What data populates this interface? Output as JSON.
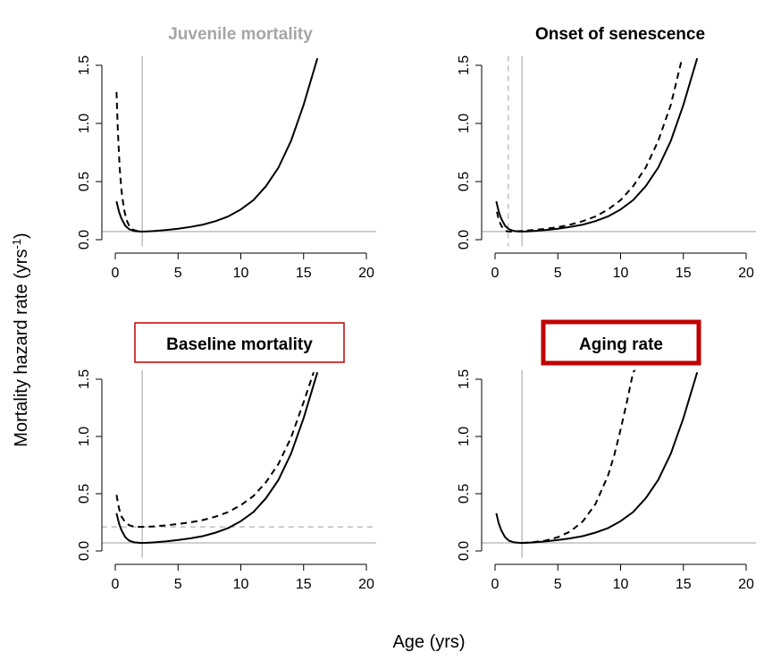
{
  "figure": {
    "ylabel_main": "Mortality hazard rate (yrs",
    "ylabel_sup": "-1",
    "ylabel_close": ")",
    "xlabel": "Age (yrs)"
  },
  "colors": {
    "curve": "#000000",
    "reference": "#bfbfbf",
    "title_muted": "#a6a6a6",
    "title_normal": "#000000",
    "highlight_box": "#c00000"
  },
  "chart_data": [
    {
      "type": "line",
      "title": "Juvenile mortality",
      "title_style": "muted",
      "xlim": [
        0,
        20
      ],
      "ylim": [
        0,
        1.5
      ],
      "x_ticks": [
        "0",
        "5",
        "10",
        "15",
        "20"
      ],
      "y_ticks": [
        "0.0",
        "0.5",
        "1.0",
        "1.5"
      ],
      "vline_solid": 2.15,
      "hline_solid": 0.07,
      "series": [
        {
          "style": "dashed",
          "x": [
            0.1,
            0.2,
            0.35,
            0.5,
            0.7,
            0.9,
            1.1,
            1.3,
            1.5,
            1.7,
            2.0,
            2.15
          ],
          "y": [
            1.27,
            0.95,
            0.62,
            0.42,
            0.26,
            0.17,
            0.12,
            0.095,
            0.082,
            0.076,
            0.072,
            0.07
          ]
        },
        {
          "style": "solid",
          "x": [
            0.1,
            0.3,
            0.5,
            0.8,
            1.1,
            1.5,
            2.0,
            2.5,
            3,
            4,
            5,
            6,
            7,
            8,
            9,
            10,
            11,
            12,
            13,
            14,
            15,
            16.1
          ],
          "y": [
            0.33,
            0.24,
            0.18,
            0.12,
            0.09,
            0.075,
            0.07,
            0.071,
            0.074,
            0.083,
            0.095,
            0.11,
            0.13,
            0.16,
            0.2,
            0.26,
            0.34,
            0.46,
            0.62,
            0.85,
            1.16,
            1.56
          ]
        }
      ]
    },
    {
      "type": "line",
      "title": "Onset of senescence",
      "title_style": "normal",
      "xlim": [
        0,
        20
      ],
      "ylim": [
        0,
        1.5
      ],
      "x_ticks": [
        "0",
        "5",
        "10",
        "15",
        "20"
      ],
      "y_ticks": [
        "0.0",
        "0.5",
        "1.0",
        "1.5"
      ],
      "vline_solid": 2.15,
      "vline_dashed": 1.05,
      "hline_solid": 0.07,
      "series": [
        {
          "style": "solid",
          "x": [
            0.1,
            0.3,
            0.5,
            0.8,
            1.1,
            1.5,
            2.0,
            2.5,
            3,
            4,
            5,
            6,
            7,
            8,
            9,
            10,
            11,
            12,
            13,
            14,
            15,
            16.1
          ],
          "y": [
            0.33,
            0.24,
            0.18,
            0.12,
            0.09,
            0.075,
            0.07,
            0.071,
            0.074,
            0.083,
            0.095,
            0.11,
            0.13,
            0.16,
            0.2,
            0.26,
            0.34,
            0.46,
            0.62,
            0.85,
            1.16,
            1.56
          ]
        },
        {
          "style": "dashed",
          "x": [
            0.15,
            0.3,
            0.5,
            0.7,
            0.9,
            1.05,
            1.5,
            2,
            3,
            4,
            5,
            6,
            7,
            8,
            9,
            10,
            11,
            12,
            13,
            14,
            14.9
          ],
          "y": [
            0.24,
            0.17,
            0.12,
            0.09,
            0.075,
            0.07,
            0.071,
            0.074,
            0.082,
            0.093,
            0.108,
            0.13,
            0.16,
            0.2,
            0.26,
            0.34,
            0.46,
            0.62,
            0.85,
            1.16,
            1.56
          ]
        }
      ]
    },
    {
      "type": "line",
      "title": "Baseline mortality",
      "title_style": "boxed",
      "xlim": [
        0,
        20
      ],
      "ylim": [
        0,
        1.5
      ],
      "x_ticks": [
        "0",
        "5",
        "10",
        "15",
        "20"
      ],
      "y_ticks": [
        "0.0",
        "0.5",
        "1.0",
        "1.5"
      ],
      "vline_solid": 2.15,
      "hline_solid": 0.07,
      "hline_dashed": 0.21,
      "series": [
        {
          "style": "dashed",
          "x": [
            0.1,
            0.3,
            0.5,
            0.8,
            1.1,
            1.5,
            2.0,
            2.5,
            3,
            4,
            5,
            6,
            7,
            8,
            9,
            10,
            11,
            12,
            13,
            14,
            15,
            15.8
          ],
          "y": [
            0.49,
            0.37,
            0.3,
            0.25,
            0.225,
            0.212,
            0.21,
            0.211,
            0.214,
            0.223,
            0.235,
            0.25,
            0.27,
            0.3,
            0.34,
            0.4,
            0.48,
            0.6,
            0.76,
            0.99,
            1.3,
            1.56
          ]
        },
        {
          "style": "solid",
          "x": [
            0.1,
            0.3,
            0.5,
            0.8,
            1.1,
            1.5,
            2.0,
            2.5,
            3,
            4,
            5,
            6,
            7,
            8,
            9,
            10,
            11,
            12,
            13,
            14,
            15,
            16.1
          ],
          "y": [
            0.33,
            0.24,
            0.18,
            0.12,
            0.09,
            0.075,
            0.07,
            0.071,
            0.074,
            0.083,
            0.095,
            0.11,
            0.13,
            0.16,
            0.2,
            0.26,
            0.34,
            0.46,
            0.62,
            0.85,
            1.16,
            1.56
          ]
        }
      ]
    },
    {
      "type": "line",
      "title": "Aging rate",
      "title_style": "boxed-bold",
      "xlim": [
        0,
        20
      ],
      "ylim": [
        0,
        1.5
      ],
      "x_ticks": [
        "0",
        "5",
        "10",
        "15",
        "20"
      ],
      "y_ticks": [
        "0.0",
        "0.5",
        "1.0",
        "1.5"
      ],
      "vline_solid": 2.15,
      "hline_solid": 0.07,
      "series": [
        {
          "style": "solid",
          "x": [
            0.1,
            0.3,
            0.5,
            0.8,
            1.1,
            1.5,
            2.0,
            2.5,
            3,
            4,
            5,
            6,
            7,
            8,
            9,
            10,
            11,
            12,
            13,
            14,
            15,
            16.1
          ],
          "y": [
            0.33,
            0.24,
            0.18,
            0.12,
            0.09,
            0.075,
            0.07,
            0.071,
            0.074,
            0.083,
            0.095,
            0.11,
            0.13,
            0.16,
            0.2,
            0.26,
            0.34,
            0.46,
            0.62,
            0.85,
            1.16,
            1.56
          ]
        },
        {
          "style": "dashed",
          "x": [
            2.15,
            3,
            4,
            5,
            6,
            7,
            8,
            9,
            9.5,
            10,
            10.5,
            11,
            11.4
          ],
          "y": [
            0.07,
            0.076,
            0.09,
            0.12,
            0.17,
            0.26,
            0.41,
            0.66,
            0.84,
            1.06,
            1.3,
            1.56,
            1.62
          ]
        }
      ]
    }
  ]
}
